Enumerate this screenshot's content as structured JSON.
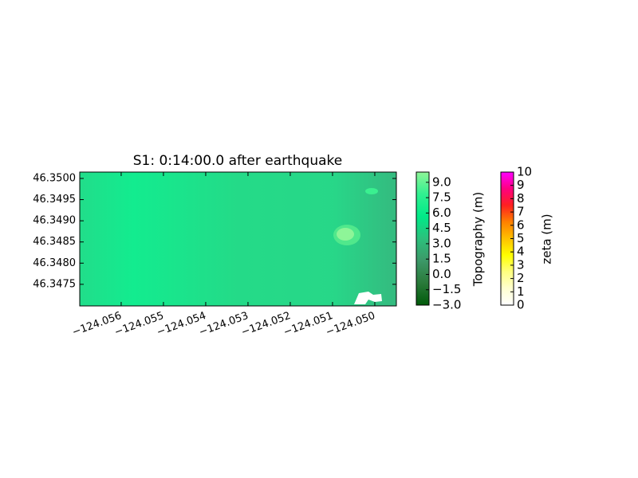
{
  "chart_data": {
    "type": "heatmap",
    "title": "S1: 0:14:00.0 after earthquake",
    "color": "#1de38b",
    "xlim": [
      -124.05698,
      -124.04949
    ],
    "ylim": [
      46.34699,
      46.35015
    ],
    "xticks": [
      {
        "value": -124.056,
        "label": "−124.056"
      },
      {
        "value": -124.055,
        "label": "−124.055"
      },
      {
        "value": -124.054,
        "label": "−124.054"
      },
      {
        "value": -124.053,
        "label": "−124.053"
      },
      {
        "value": -124.052,
        "label": "−124.052"
      },
      {
        "value": -124.051,
        "label": "−124.051"
      },
      {
        "value": -124.05,
        "label": "−124.050"
      }
    ],
    "yticks": [
      {
        "value": 46.35,
        "label": "46.3500"
      },
      46.3495,
      {
        "value": 46.349,
        "label": "46.3490"
      },
      46.3485,
      {
        "value": 46.348,
        "label": "46.3480"
      },
      46.3475
    ],
    "colorbars": [
      {
        "label": "Topography (m)",
        "lim": [
          -3,
          10
        ],
        "ticks": [
          {
            "value": -3,
            "label": "−3.0"
          },
          {
            "value": -1.5,
            "label": "−1.5"
          },
          {
            "value": 0,
            "label": "0.0"
          },
          1.5,
          {
            "value": 3,
            "label": "3.0"
          },
          4.5,
          {
            "value": 6,
            "label": "6.0"
          },
          7.5,
          {
            "value": 9,
            "label": "9.0"
          }
        ],
        "colors": [
          "#005a0a",
          "#2a7a3a",
          "#3c9868",
          "#2cc07c",
          "#00ea88",
          "#30f090",
          "#8ef598"
        ]
      },
      {
        "label": "zeta (m)",
        "lim": [
          0,
          10
        ],
        "ticks": [
          0,
          1,
          2,
          3,
          4,
          5,
          6,
          7,
          8,
          9,
          10
        ],
        "colors": [
          "#ffffff",
          "#ffffd0",
          "#ffff80",
          "#ffff00",
          "#ffc000",
          "#ff8000",
          "#ff2020",
          "#ff0080",
          "#ff00ff"
        ]
      }
    ]
  }
}
